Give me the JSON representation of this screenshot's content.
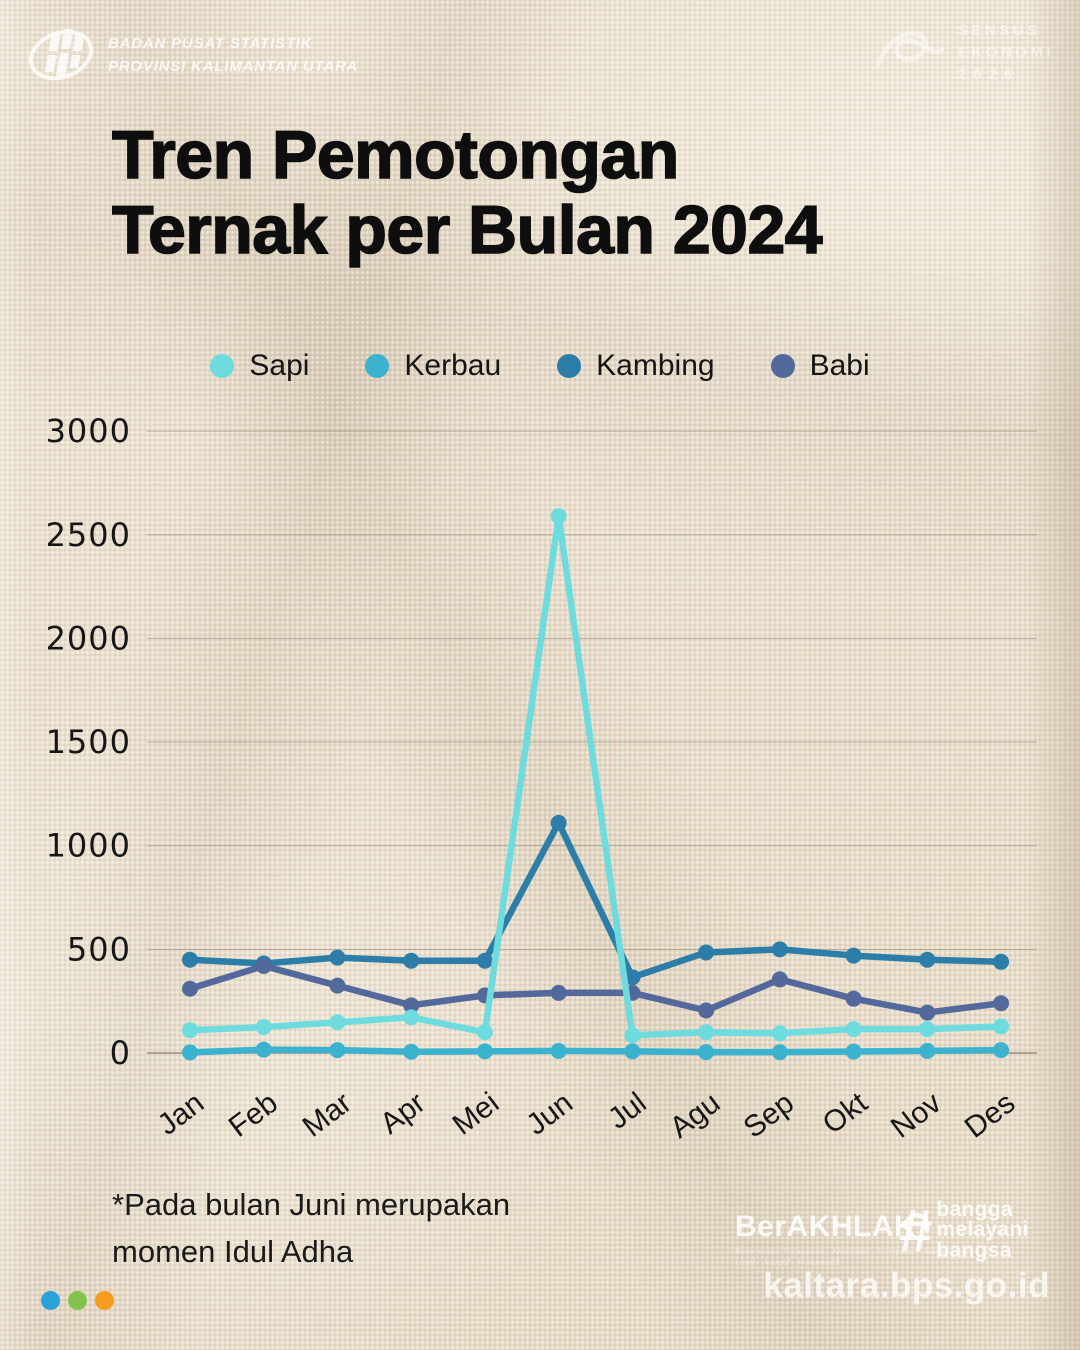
{
  "header": {
    "org_name_line1": "BADAN PUSAT STATISTIK",
    "org_name_line2": "PROVINSI KALIMANTAN UTARA",
    "sensus": {
      "line1": "SENSUS",
      "line2": "EKONOMI",
      "line3": "2026"
    }
  },
  "title": {
    "line1": "Tren Pemotongan",
    "line2": "Ternak per Bulan 2024"
  },
  "chart_data": {
    "type": "line",
    "title": "Tren Pemotongan Ternak per Bulan 2024",
    "categories": [
      "Jan",
      "Feb",
      "Mar",
      "Apr",
      "Mei",
      "Jun",
      "Jul",
      "Agu",
      "Sep",
      "Okt",
      "Nov",
      "Des"
    ],
    "series": [
      {
        "name": "Sapi",
        "color": "#6edcdf",
        "values": [
          110,
          125,
          148,
          172,
          100,
          2590,
          85,
          100,
          95,
          115,
          115,
          128
        ]
      },
      {
        "name": "Kerbau",
        "color": "#3cb3ce",
        "values": [
          3,
          16,
          14,
          6,
          8,
          10,
          8,
          4,
          4,
          7,
          10,
          14
        ]
      },
      {
        "name": "Kambing",
        "color": "#2c7ea9",
        "values": [
          450,
          432,
          460,
          445,
          445,
          1110,
          365,
          485,
          500,
          470,
          450,
          440
        ]
      },
      {
        "name": "Babi",
        "color": "#53689b",
        "values": [
          310,
          420,
          325,
          230,
          278,
          290,
          290,
          205,
          355,
          262,
          195,
          240
        ]
      }
    ],
    "ylim": [
      0,
      3000
    ],
    "yticks": [
      0,
      500,
      1000,
      1500,
      2000,
      2500,
      3000
    ],
    "grid": true,
    "legend_position": "top",
    "xlabel": "",
    "ylabel": ""
  },
  "footnote": {
    "line1": "*Pada bulan Juni merupakan",
    "line2": "momen Idul Adha"
  },
  "footer": {
    "berakhlak_label": "BerAKHLAK",
    "berakhlak_arrow": "❯",
    "berakhlak_tagline_line1": "Berorientasi Pelayanan · Akuntabel · Kompeten · Harmonis",
    "berakhlak_tagline_line2": "Loyal · Adaptif · Kolaboratif",
    "hashtag_symbol": "#",
    "hashtag_words": [
      "bangga",
      "melayani",
      "bangsa"
    ],
    "website": "kaltara.bps.go.id"
  },
  "colors": {
    "background": "#eadfce",
    "text": "#141414",
    "footer_dots": [
      "#2ba1d9",
      "#84c14d",
      "#f59b1e"
    ]
  }
}
